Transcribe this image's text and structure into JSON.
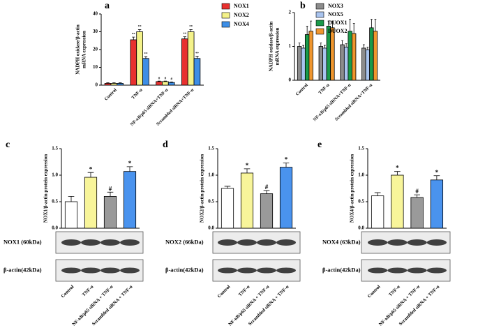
{
  "chart_data": [
    {
      "type": "bar",
      "label": "a",
      "ylabel": [
        "NADPH oxidase/β-actin",
        "mRNA expression"
      ],
      "categories": [
        "Control",
        "TNF-α",
        "NF-κB/p65 siRNA+TNF-α",
        "Scrambled siRNA+TNF-α"
      ],
      "series": [
        {
          "name": "NOX1",
          "color": "#e8312f",
          "values": [
            1,
            25.5,
            2,
            26
          ],
          "errors": [
            0.3,
            1.5,
            0.3,
            1.2
          ],
          "markers": [
            null,
            "**",
            "#",
            "**"
          ]
        },
        {
          "name": "NOX2",
          "color": "#f4f28a",
          "values": [
            1,
            30,
            2,
            30
          ],
          "errors": [
            0.3,
            1.2,
            0.3,
            1.2
          ],
          "markers": [
            null,
            "**",
            "#",
            "**"
          ]
        },
        {
          "name": "NOX4",
          "color": "#3d8ee6",
          "values": [
            1,
            15,
            1.5,
            15
          ],
          "errors": [
            0.3,
            1.0,
            0.3,
            1.2
          ],
          "markers": [
            null,
            "**",
            "#",
            "**"
          ]
        }
      ],
      "ylim": [
        0,
        40
      ],
      "yticks": [
        0,
        10,
        20,
        30,
        40
      ]
    },
    {
      "type": "bar",
      "label": "b",
      "ylabel": [
        "NADPH oxidase/β-actin",
        "mRNA expression"
      ],
      "categories": [
        "Control",
        "TNF-α",
        "NF-κB/p65 siRNA+TNF-α",
        "Scrambled siRNA+TNF-α"
      ],
      "series": [
        {
          "name": "NOX3",
          "color": "#8c8c8c",
          "values": [
            1.0,
            1.0,
            1.05,
            0.95
          ],
          "errors": [
            0.1,
            0.1,
            0.12,
            0.1
          ]
        },
        {
          "name": "NOX5",
          "color": "#a9c4ef",
          "values": [
            0.95,
            0.95,
            0.98,
            0.9
          ],
          "errors": [
            0.08,
            0.08,
            0.1,
            0.08
          ]
        },
        {
          "name": "DUOX1",
          "color": "#1a9a4a",
          "values": [
            1.35,
            1.6,
            1.45,
            1.55
          ],
          "errors": [
            0.25,
            0.15,
            0.35,
            0.25
          ]
        },
        {
          "name": "DUOX2",
          "color": "#f0962e",
          "values": [
            1.45,
            1.55,
            1.38,
            1.45
          ],
          "errors": [
            0.3,
            0.2,
            0.3,
            0.35
          ]
        }
      ],
      "ylim": [
        0,
        2
      ],
      "yticks": [
        0,
        1,
        2
      ]
    },
    {
      "type": "bar",
      "label": "c",
      "ylabel": [
        "NOX1/β-actin protein expression"
      ],
      "categories": [
        "Control",
        "TNF-α",
        "NF-κB/p65 siRNA + TNF-α",
        "Scrambled siRNA + TNF-α"
      ],
      "series": [
        {
          "colors": [
            "#ffffff",
            "#f8f59a",
            "#9a9a9a",
            "#4a93ee"
          ],
          "values": [
            0.5,
            0.96,
            0.6,
            1.07
          ],
          "errors": [
            0.1,
            0.09,
            0.08,
            0.09
          ],
          "markers": [
            null,
            "*",
            "#",
            "*"
          ]
        }
      ],
      "ylim": [
        0,
        1.5
      ],
      "yticks": [
        {
          "value": 0,
          "label": "0.0"
        },
        0.5,
        {
          "value": 1,
          "label": "1.0"
        },
        1.5
      ],
      "blots": [
        {
          "label": "NOX1 (60kDa)"
        },
        {
          "label": "β-actin(42kDa)"
        }
      ]
    },
    {
      "type": "bar",
      "label": "d",
      "ylabel": [
        "NOX2/β-actin protein expression"
      ],
      "categories": [
        "Control",
        "TNF-α",
        "NF-κB/p65 siRNA + TNF-α",
        "Scrambled siRNA + TNF-α"
      ],
      "series": [
        {
          "colors": [
            "#ffffff",
            "#f8f59a",
            "#9a9a9a",
            "#4a93ee"
          ],
          "values": [
            0.75,
            1.04,
            0.65,
            1.15
          ],
          "errors": [
            0.04,
            0.08,
            0.06,
            0.08
          ],
          "markers": [
            null,
            "*",
            "#",
            "*"
          ]
        }
      ],
      "ylim": [
        0,
        1.5
      ],
      "yticks": [
        {
          "value": 0,
          "label": "0.0"
        },
        0.5,
        {
          "value": 1,
          "label": "1.0"
        },
        1.5
      ],
      "blots": [
        {
          "label": "NOX2 (66kDa)"
        },
        {
          "label": "β-actin(42kDa)"
        }
      ]
    },
    {
      "type": "bar",
      "label": "e",
      "ylabel": [
        "NOX4/β-actin protein expression"
      ],
      "categories": [
        "Control",
        "TNF-α",
        "NF-κB/p65 siRNA + TNF-α",
        "Scrambled siRNA + TNF-α"
      ],
      "series": [
        {
          "colors": [
            "#ffffff",
            "#f8f59a",
            "#9a9a9a",
            "#4a93ee"
          ],
          "values": [
            0.61,
            1.0,
            0.58,
            0.91
          ],
          "errors": [
            0.06,
            0.07,
            0.05,
            0.08
          ],
          "markers": [
            null,
            "*",
            "#",
            "*"
          ]
        }
      ],
      "ylim": [
        0,
        1.5
      ],
      "yticks": [
        {
          "value": 0,
          "label": "0.0"
        },
        0.5,
        {
          "value": 1,
          "label": "1.0"
        },
        1.5
      ],
      "blots": [
        {
          "label": "NOX4 (63kDa)"
        },
        {
          "label": "β-actin(42kDa)"
        }
      ]
    }
  ]
}
